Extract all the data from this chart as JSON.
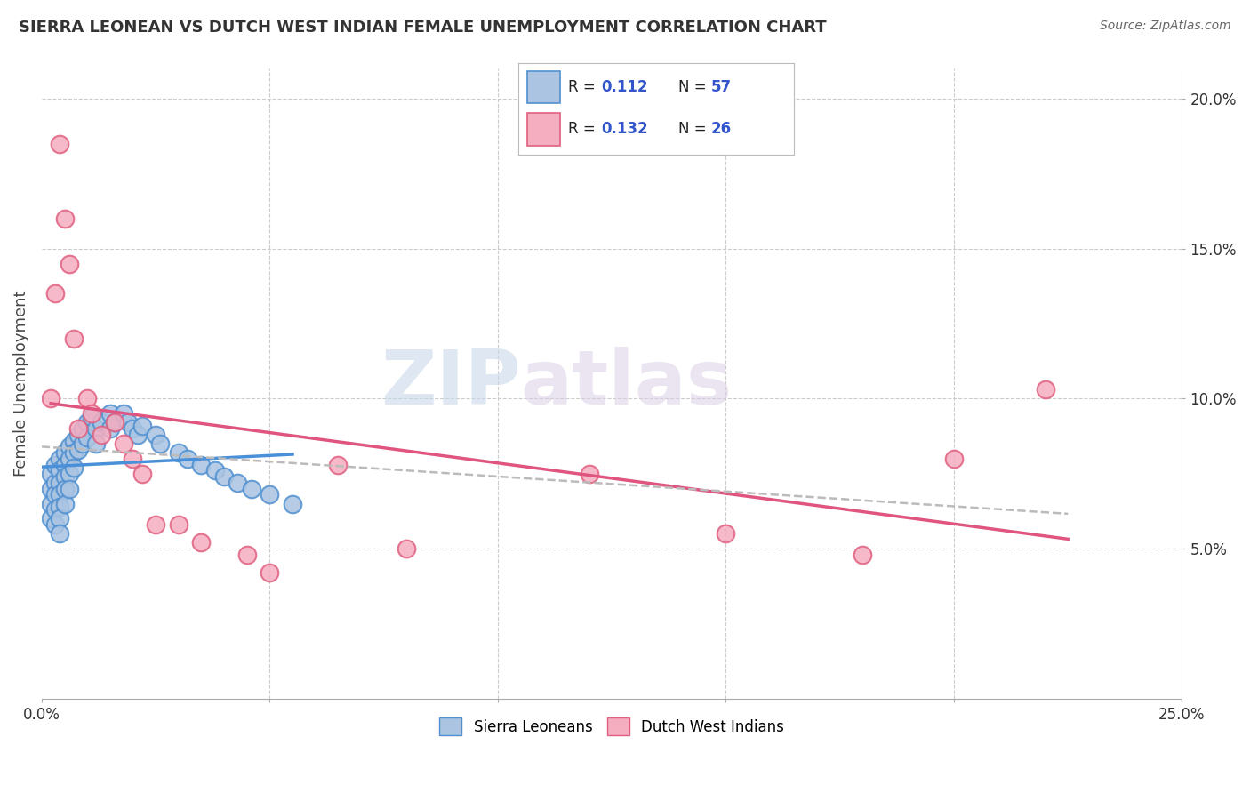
{
  "title": "SIERRA LEONEAN VS DUTCH WEST INDIAN FEMALE UNEMPLOYMENT CORRELATION CHART",
  "source_text": "Source: ZipAtlas.com",
  "ylabel": "Female Unemployment",
  "xlim": [
    0.0,
    0.25
  ],
  "ylim": [
    0.0,
    0.21
  ],
  "background_color": "#ffffff",
  "grid_color": "#cccccc",
  "watermark_zip": "ZIP",
  "watermark_atlas": "atlas",
  "sierra_color": "#aac4e2",
  "dutch_color": "#f5adc0",
  "sierra_edge_color": "#5090d0",
  "dutch_edge_color": "#e06080",
  "sierra_line_color": "#4a90d9",
  "dutch_line_color": "#e05580",
  "trend_line_color": "#bbbbbb",
  "legend_color_text": "#3355cc",
  "legend_label1": "Sierra Leoneans",
  "legend_label2": "Dutch West Indians",
  "sierra_x": [
    0.002,
    0.002,
    0.002,
    0.002,
    0.003,
    0.003,
    0.003,
    0.003,
    0.003,
    0.004,
    0.004,
    0.004,
    0.004,
    0.004,
    0.004,
    0.004,
    0.005,
    0.005,
    0.005,
    0.005,
    0.005,
    0.006,
    0.006,
    0.006,
    0.006,
    0.007,
    0.007,
    0.007,
    0.008,
    0.008,
    0.009,
    0.009,
    0.01,
    0.01,
    0.011,
    0.012,
    0.012,
    0.013,
    0.015,
    0.015,
    0.016,
    0.018,
    0.019,
    0.02,
    0.021,
    0.022,
    0.025,
    0.026,
    0.03,
    0.032,
    0.035,
    0.038,
    0.04,
    0.043,
    0.046,
    0.05,
    0.055
  ],
  "sierra_y": [
    0.075,
    0.07,
    0.065,
    0.06,
    0.078,
    0.072,
    0.068,
    0.063,
    0.058,
    0.08,
    0.076,
    0.072,
    0.068,
    0.064,
    0.06,
    0.055,
    0.082,
    0.078,
    0.074,
    0.07,
    0.065,
    0.084,
    0.08,
    0.075,
    0.07,
    0.086,
    0.082,
    0.077,
    0.088,
    0.083,
    0.09,
    0.085,
    0.092,
    0.087,
    0.094,
    0.09,
    0.085,
    0.092,
    0.095,
    0.09,
    0.092,
    0.095,
    0.092,
    0.09,
    0.088,
    0.091,
    0.088,
    0.085,
    0.082,
    0.08,
    0.078,
    0.076,
    0.074,
    0.072,
    0.07,
    0.068,
    0.065
  ],
  "dutch_x": [
    0.002,
    0.003,
    0.004,
    0.005,
    0.006,
    0.007,
    0.008,
    0.01,
    0.011,
    0.013,
    0.016,
    0.018,
    0.02,
    0.022,
    0.025,
    0.03,
    0.035,
    0.045,
    0.05,
    0.065,
    0.08,
    0.12,
    0.15,
    0.18,
    0.2,
    0.22
  ],
  "dutch_y": [
    0.1,
    0.135,
    0.185,
    0.16,
    0.145,
    0.12,
    0.09,
    0.1,
    0.095,
    0.088,
    0.092,
    0.085,
    0.08,
    0.075,
    0.058,
    0.058,
    0.052,
    0.048,
    0.042,
    0.078,
    0.05,
    0.075,
    0.055,
    0.048,
    0.08,
    0.103
  ]
}
